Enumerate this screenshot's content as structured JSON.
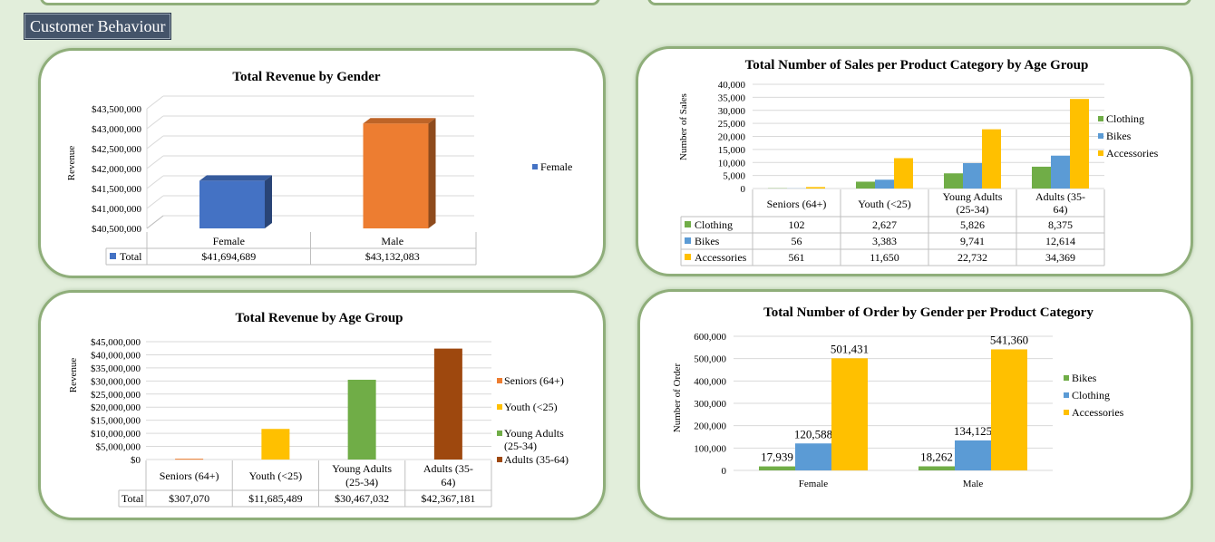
{
  "section": {
    "title": "Customer Behaviour"
  },
  "colors": {
    "blue": "#4472c4",
    "orange": "#ed7d31",
    "green": "#70ad47",
    "gold": "#ffc000",
    "brown": "#9e480e"
  },
  "chart_data": [
    {
      "id": "gender",
      "type": "bar",
      "title": "Total Revenue by Gender",
      "ylabel": "Revenue",
      "xlabel": "",
      "categories": [
        "Female",
        "Male"
      ],
      "series": [
        {
          "name": "Total",
          "values": [
            41694689,
            43132083
          ],
          "labels": [
            "$41,694,689",
            "$43,132,083"
          ]
        }
      ],
      "bar_colors": [
        "#4472c4",
        "#ed7d31"
      ],
      "ylim": [
        40500000,
        43500000
      ],
      "yticks": [
        "$40,500,000",
        "$41,000,000",
        "$41,500,000",
        "$42,000,000",
        "$42,500,000",
        "$43,000,000",
        "$43,500,000"
      ],
      "legend": [
        "Female"
      ],
      "legend_position": "right",
      "grid": true,
      "style": "3d"
    },
    {
      "id": "age_category",
      "type": "bar",
      "title": "Total Number of Sales per Product Category by Age Group",
      "ylabel": "Number of Sales",
      "xlabel": "",
      "categories": [
        "Seniors (64+)",
        "Youth (<25)",
        "Young Adults (25-34)",
        "Adults (35-64)"
      ],
      "category_lines": [
        [
          "Seniors (64+)"
        ],
        [
          "Youth (<25)"
        ],
        [
          "Young Adults",
          "(25-34)"
        ],
        [
          "Adults (35-",
          "64)"
        ]
      ],
      "series": [
        {
          "name": "Clothing",
          "values": [
            102,
            2627,
            5826,
            8375
          ],
          "labels": [
            "102",
            "2,627",
            "5,826",
            "8,375"
          ],
          "color": "#70ad47"
        },
        {
          "name": "Bikes",
          "values": [
            56,
            3383,
            9741,
            12614
          ],
          "labels": [
            "56",
            "3,383",
            "9,741",
            "12,614"
          ],
          "color": "#5b9bd5"
        },
        {
          "name": "Accessories",
          "values": [
            561,
            11650,
            22732,
            34369
          ],
          "labels": [
            "561",
            "11,650",
            "22,732",
            "34,369"
          ],
          "color": "#ffc000"
        }
      ],
      "ylim": [
        0,
        40000
      ],
      "yticks": [
        "0",
        "5,000",
        "10,000",
        "15,000",
        "20,000",
        "25,000",
        "30,000",
        "35,000",
        "40,000"
      ],
      "legend_position": "right",
      "grid": true
    },
    {
      "id": "age_revenue",
      "type": "bar",
      "title": "Total Revenue by Age Group",
      "ylabel": "Revenue",
      "xlabel": "",
      "categories": [
        "Seniors (64+)",
        "Youth (<25)",
        "Young Adults (25-34)",
        "Adults (35-64)"
      ],
      "category_lines": [
        [
          "Seniors (64+)"
        ],
        [
          "Youth (<25)"
        ],
        [
          "Young Adults",
          "(25-34)"
        ],
        [
          "Adults (35-",
          "64)"
        ]
      ],
      "series": [
        {
          "name": "Total",
          "values": [
            307070,
            11685489,
            30467032,
            42367181
          ],
          "labels": [
            "$307,070",
            "$11,685,489",
            "$30,467,032",
            "$42,367,181"
          ]
        }
      ],
      "bar_colors": [
        "#ed7d31",
        "#ffc000",
        "#70ad47",
        "#9e480e"
      ],
      "ylim": [
        0,
        45000000
      ],
      "yticks": [
        "$0",
        "$5,000,000",
        "$10,000,000",
        "$15,000,000",
        "$20,000,000",
        "$25,000,000",
        "$30,000,000",
        "$35,000,000",
        "$40,000,000",
        "$45,000,000"
      ],
      "legend": [
        [
          "Seniors (64+)"
        ],
        [
          "Youth (<25)"
        ],
        [
          "Young Adults",
          "(25-34)"
        ],
        [
          "Adults (35-64)"
        ]
      ],
      "legend_position": "right",
      "grid": true
    },
    {
      "id": "gender_category",
      "type": "bar",
      "title": "Total Number of Order by Gender per Product Category",
      "ylabel": "Number of Order",
      "xlabel": "",
      "categories": [
        "Female",
        "Male"
      ],
      "series": [
        {
          "name": "Bikes",
          "values": [
            17939,
            18262
          ],
          "labels": [
            "17,939",
            "18,262"
          ],
          "color": "#70ad47"
        },
        {
          "name": "Clothing",
          "values": [
            120588,
            134125
          ],
          "labels": [
            "120,588",
            "134,125"
          ],
          "color": "#5b9bd5"
        },
        {
          "name": "Accessories",
          "values": [
            501431,
            541360
          ],
          "labels": [
            "501,431",
            "541,360"
          ],
          "color": "#ffc000"
        }
      ],
      "ylim": [
        0,
        600000
      ],
      "yticks": [
        "0",
        "100,000",
        "200,000",
        "300,000",
        "400,000",
        "500,000",
        "600,000"
      ],
      "legend_position": "right",
      "grid": true
    }
  ]
}
